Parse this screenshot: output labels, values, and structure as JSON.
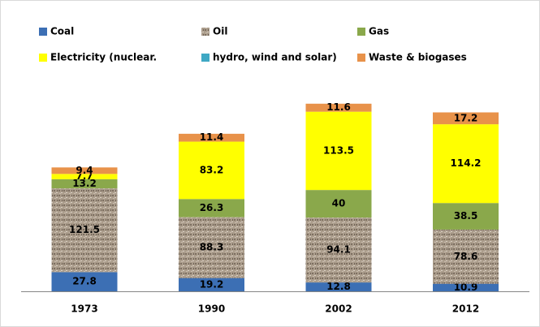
{
  "chart_data": {
    "type": "stacked_bar",
    "categories": [
      "1973",
      "1990",
      "2002",
      "2012"
    ],
    "series": [
      {
        "name": "Coal",
        "color": "#3c6fb4",
        "values": [
          27.8,
          19.2,
          12.8,
          10.9
        ]
      },
      {
        "name": "Oil",
        "color": "#ab9d8c",
        "values": [
          121.5,
          88.3,
          94.1,
          78.6
        ]
      },
      {
        "name": "Gas",
        "color": "#8aa84b",
        "values": [
          13.2,
          26.3,
          40,
          38.5
        ]
      },
      {
        "name": "Electricity (nuclear.",
        "color": "#ffff00",
        "values": [
          7.7,
          83.2,
          113.5,
          114.2
        ]
      },
      {
        "name": "hydro, wind and solar)",
        "color": "#3fa8c4",
        "values": [
          null,
          null,
          null,
          null
        ]
      },
      {
        "name": "Waste & biogases",
        "color": "#e8924a",
        "values": [
          9.4,
          11.4,
          11.6,
          17.2
        ]
      }
    ]
  }
}
